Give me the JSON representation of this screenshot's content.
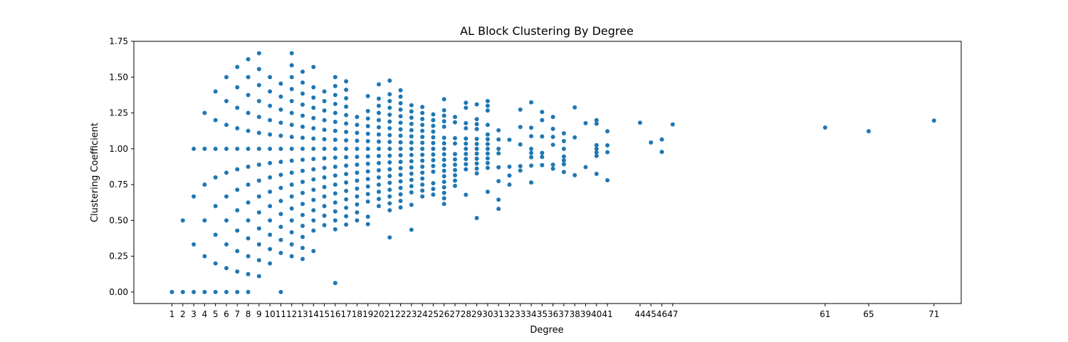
{
  "chart_data": {
    "type": "scatter",
    "title": "AL Block Clustering By Degree",
    "xlabel": "Degree",
    "ylabel": "Clustering Coefficient",
    "xlim": [
      -2.5,
      73.5
    ],
    "ylim": [
      -0.08,
      1.75
    ],
    "x_ticks": [
      1,
      2,
      3,
      4,
      5,
      6,
      7,
      8,
      9,
      10,
      11,
      12,
      13,
      14,
      15,
      16,
      17,
      18,
      19,
      20,
      21,
      22,
      23,
      24,
      25,
      26,
      27,
      28,
      29,
      30,
      31,
      32,
      33,
      34,
      35,
      36,
      37,
      38,
      39,
      40,
      41,
      44,
      45,
      46,
      47,
      61,
      65,
      71
    ],
    "y_ticks": [
      0.0,
      0.25,
      0.5,
      0.75,
      1.0,
      1.25,
      1.5,
      1.75
    ],
    "y_tick_labels": [
      "0.00",
      "0.25",
      "0.50",
      "0.75",
      "1.00",
      "1.25",
      "1.50",
      "1.75"
    ],
    "grid": false,
    "color": "#1f77b4",
    "series": [
      {
        "x": 1,
        "y": [
          0.0
        ]
      },
      {
        "x": 2,
        "y": [
          0.0,
          0.5
        ]
      },
      {
        "x": 3,
        "y": [
          0.0,
          0.333,
          0.667,
          1.0
        ]
      },
      {
        "x": 4,
        "y": [
          0.0,
          0.25,
          0.5,
          0.75,
          1.0,
          1.25
        ]
      },
      {
        "x": 5,
        "y": [
          0.0,
          0.2,
          0.4,
          0.6,
          0.8,
          1.0,
          1.2,
          1.4
        ]
      },
      {
        "x": 6,
        "y": [
          0.0,
          0.167,
          0.333,
          0.5,
          0.667,
          0.833,
          1.0,
          1.167,
          1.333,
          1.5
        ]
      },
      {
        "x": 7,
        "y": [
          0.0,
          0.143,
          0.286,
          0.429,
          0.571,
          0.714,
          0.857,
          1.0,
          1.143,
          1.286,
          1.429,
          1.571
        ]
      },
      {
        "x": 8,
        "y": [
          0.0,
          0.125,
          0.25,
          0.375,
          0.5,
          0.625,
          0.75,
          0.875,
          1.0,
          1.125,
          1.25,
          1.375,
          1.5,
          1.625
        ]
      },
      {
        "x": 9,
        "y": [
          0.111,
          0.222,
          0.333,
          0.444,
          0.556,
          0.667,
          0.778,
          0.889,
          1.0,
          1.111,
          1.222,
          1.333,
          1.444,
          1.556,
          1.667
        ]
      },
      {
        "x": 10,
        "y": [
          0.2,
          0.3,
          0.4,
          0.5,
          0.6,
          0.7,
          0.8,
          0.9,
          1.0,
          1.1,
          1.2,
          1.3,
          1.4,
          1.5
        ]
      },
      {
        "x": 11,
        "y": [
          0.0,
          0.273,
          0.364,
          0.455,
          0.545,
          0.636,
          0.727,
          0.818,
          0.909,
          1.0,
          1.091,
          1.182,
          1.273,
          1.364,
          1.455
        ]
      },
      {
        "x": 12,
        "y": [
          0.25,
          0.333,
          0.417,
          0.5,
          0.583,
          0.667,
          0.75,
          0.833,
          0.917,
          1.0,
          1.083,
          1.167,
          1.25,
          1.333,
          1.417,
          1.5,
          1.583,
          1.667
        ]
      },
      {
        "x": 13,
        "y": [
          0.231,
          0.308,
          0.385,
          0.462,
          0.538,
          0.615,
          0.692,
          0.769,
          0.846,
          0.923,
          1.0,
          1.077,
          1.154,
          1.231,
          1.308,
          1.385,
          1.462,
          1.538
        ]
      },
      {
        "x": 14,
        "y": [
          0.286,
          0.429,
          0.5,
          0.571,
          0.643,
          0.714,
          0.786,
          0.857,
          0.929,
          1.0,
          1.071,
          1.143,
          1.214,
          1.286,
          1.357,
          1.429,
          1.571
        ]
      },
      {
        "x": 15,
        "y": [
          0.467,
          0.533,
          0.6,
          0.667,
          0.733,
          0.8,
          0.867,
          0.933,
          1.0,
          1.067,
          1.133,
          1.2,
          1.267,
          1.333,
          1.4
        ]
      },
      {
        "x": 16,
        "y": [
          0.063,
          0.438,
          0.5,
          0.563,
          0.625,
          0.688,
          0.75,
          0.813,
          0.875,
          0.938,
          1.0,
          1.063,
          1.125,
          1.188,
          1.25,
          1.313,
          1.375,
          1.438,
          1.5
        ]
      },
      {
        "x": 17,
        "y": [
          0.471,
          0.529,
          0.588,
          0.647,
          0.706,
          0.765,
          0.824,
          0.882,
          0.941,
          1.0,
          1.059,
          1.118,
          1.176,
          1.235,
          1.294,
          1.353,
          1.412,
          1.471
        ]
      },
      {
        "x": 18,
        "y": [
          0.5,
          0.556,
          0.611,
          0.667,
          0.722,
          0.778,
          0.833,
          0.889,
          0.944,
          1.0,
          1.056,
          1.111,
          1.167,
          1.222
        ]
      },
      {
        "x": 19,
        "y": [
          0.474,
          0.526,
          0.632,
          0.684,
          0.737,
          0.789,
          0.842,
          0.895,
          0.947,
          1.0,
          1.053,
          1.105,
          1.158,
          1.211,
          1.263,
          1.368
        ]
      },
      {
        "x": 20,
        "y": [
          0.6,
          0.65,
          0.7,
          0.75,
          0.8,
          0.85,
          0.9,
          0.95,
          1.0,
          1.05,
          1.1,
          1.15,
          1.2,
          1.25,
          1.3,
          1.35,
          1.45
        ]
      },
      {
        "x": 21,
        "y": [
          0.381,
          0.571,
          0.619,
          0.667,
          0.714,
          0.762,
          0.81,
          0.857,
          0.905,
          0.952,
          1.0,
          1.048,
          1.095,
          1.143,
          1.19,
          1.238,
          1.286,
          1.333,
          1.381,
          1.476
        ]
      },
      {
        "x": 22,
        "y": [
          0.591,
          0.636,
          0.682,
          0.727,
          0.773,
          0.818,
          0.864,
          0.909,
          0.955,
          1.0,
          1.045,
          1.091,
          1.136,
          1.182,
          1.227,
          1.273,
          1.318,
          1.364,
          1.409
        ]
      },
      {
        "x": 23,
        "y": [
          0.435,
          0.609,
          0.696,
          0.739,
          0.783,
          0.826,
          0.87,
          0.913,
          0.957,
          1.0,
          1.043,
          1.087,
          1.13,
          1.174,
          1.217,
          1.261,
          1.304
        ]
      },
      {
        "x": 24,
        "y": [
          0.667,
          0.708,
          0.75,
          0.792,
          0.833,
          0.875,
          0.917,
          0.958,
          1.0,
          1.042,
          1.083,
          1.125,
          1.167,
          1.208,
          1.25,
          1.292
        ]
      },
      {
        "x": 25,
        "y": [
          0.68,
          0.72,
          0.76,
          0.84,
          0.88,
          0.92,
          0.96,
          1.0,
          1.04,
          1.08,
          1.12,
          1.16,
          1.2,
          1.24
        ]
      },
      {
        "x": 26,
        "y": [
          0.615,
          0.654,
          0.692,
          0.731,
          0.769,
          0.808,
          0.846,
          0.885,
          0.923,
          0.962,
          1.0,
          1.038,
          1.077,
          1.154,
          1.192,
          1.231,
          1.269,
          1.346
        ]
      },
      {
        "x": 27,
        "y": [
          0.741,
          0.778,
          0.815,
          0.852,
          0.889,
          0.926,
          0.963,
          1.037,
          1.074,
          1.185,
          1.222
        ]
      },
      {
        "x": 28,
        "y": [
          0.679,
          0.857,
          0.893,
          0.929,
          0.964,
          1.0,
          1.036,
          1.071,
          1.143,
          1.179,
          1.286,
          1.321
        ]
      },
      {
        "x": 29,
        "y": [
          0.517,
          0.828,
          0.862,
          0.897,
          0.931,
          0.966,
          1.0,
          1.034,
          1.069,
          1.138,
          1.172,
          1.207,
          1.31
        ]
      },
      {
        "x": 30,
        "y": [
          0.7,
          0.867,
          0.9,
          0.933,
          0.967,
          1.0,
          1.033,
          1.067,
          1.1,
          1.167,
          1.267,
          1.3,
          1.333
        ]
      },
      {
        "x": 31,
        "y": [
          0.581,
          0.645,
          0.774,
          0.871,
          0.968,
          1.0,
          1.065,
          1.129
        ]
      },
      {
        "x": 32,
        "y": [
          0.75,
          0.813,
          0.875,
          1.063
        ]
      },
      {
        "x": 33,
        "y": [
          0.848,
          0.879,
          1.03,
          1.152,
          1.273
        ]
      },
      {
        "x": 34,
        "y": [
          0.765,
          0.882,
          0.941,
          0.971,
          1.0,
          1.088,
          1.147,
          1.324
        ]
      },
      {
        "x": 35,
        "y": [
          0.886,
          0.943,
          0.971,
          1.086,
          1.2,
          1.257
        ]
      },
      {
        "x": 36,
        "y": [
          0.861,
          0.889,
          1.028,
          1.083,
          1.139,
          1.222
        ]
      },
      {
        "x": 37,
        "y": [
          0.838,
          0.892,
          0.919,
          0.946,
          1.0,
          1.054,
          1.108
        ]
      },
      {
        "x": 38,
        "y": [
          0.816,
          1.079,
          1.289
        ]
      },
      {
        "x": 39,
        "y": [
          0.872,
          1.179
        ]
      },
      {
        "x": 40,
        "y": [
          0.825,
          0.95,
          0.975,
          1.0,
          1.025,
          1.175,
          1.2
        ]
      },
      {
        "x": 41,
        "y": [
          0.78,
          0.976,
          1.024,
          1.122
        ]
      },
      {
        "x": 44,
        "y": [
          1.182
        ]
      },
      {
        "x": 45,
        "y": [
          1.044
        ]
      },
      {
        "x": 46,
        "y": [
          0.978,
          1.065
        ]
      },
      {
        "x": 47,
        "y": [
          1.17
        ]
      },
      {
        "x": 61,
        "y": [
          1.148
        ]
      },
      {
        "x": 65,
        "y": [
          1.123
        ]
      },
      {
        "x": 71,
        "y": [
          1.197
        ]
      }
    ]
  }
}
